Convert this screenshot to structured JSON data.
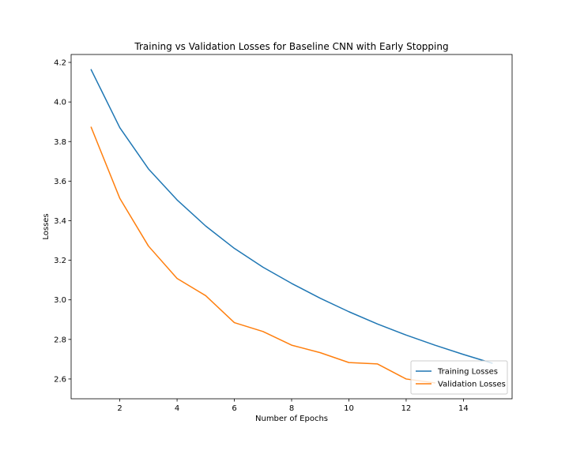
{
  "chart_data": {
    "type": "line",
    "title": "Training vs Validation Losses for Baseline CNN with Early Stopping",
    "xlabel": "Number of Epochs",
    "ylabel": "Losses",
    "xlim": [
      0.3,
      15.7
    ],
    "ylim": [
      2.5,
      4.24
    ],
    "xticks": [
      2,
      4,
      6,
      8,
      10,
      12,
      14
    ],
    "xtick_labels": [
      "2",
      "4",
      "6",
      "8",
      "10",
      "12",
      "14"
    ],
    "yticks": [
      2.6,
      2.8,
      3.0,
      3.2,
      3.4,
      3.6,
      3.8,
      4.0,
      4.2
    ],
    "ytick_labels": [
      "2.6",
      "2.8",
      "3.0",
      "3.2",
      "3.4",
      "3.6",
      "3.8",
      "4.0",
      "4.2"
    ],
    "grid": false,
    "legend_position": "lower-right",
    "series": [
      {
        "name": "Training Losses",
        "color": "#1f77b4",
        "x": [
          1,
          2,
          3,
          4,
          5,
          6,
          7,
          8,
          9,
          10,
          11,
          12,
          13,
          14,
          15
        ],
        "y": [
          4.163,
          3.87,
          3.662,
          3.505,
          3.373,
          3.26,
          3.165,
          3.083,
          3.008,
          2.94,
          2.878,
          2.822,
          2.771,
          2.724,
          2.68
        ]
      },
      {
        "name": "Validation Losses",
        "color": "#ff7f0e",
        "x": [
          1,
          2,
          3,
          4,
          5,
          6,
          7,
          8,
          9,
          10,
          11,
          12,
          13
        ],
        "y": [
          3.872,
          3.513,
          3.272,
          3.108,
          3.021,
          2.885,
          2.84,
          2.771,
          2.733,
          2.683,
          2.676,
          2.6,
          2.58
        ]
      }
    ]
  }
}
